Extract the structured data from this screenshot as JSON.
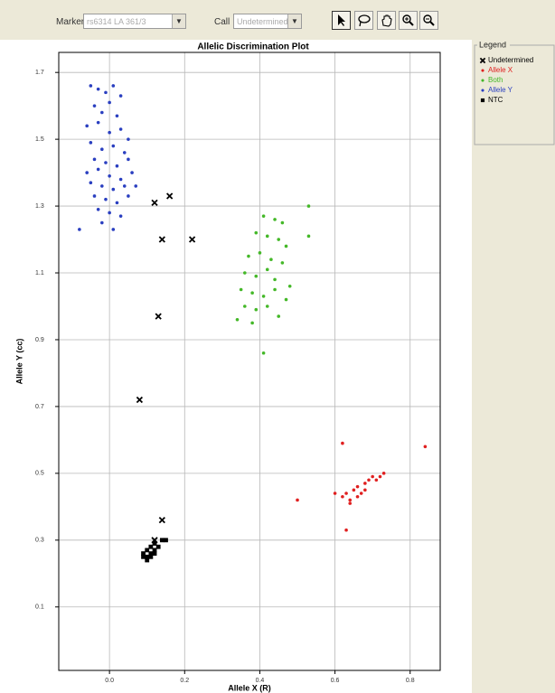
{
  "toolbar": {
    "marker_label": "Marker",
    "marker_value": "rs6314 LA 361/3",
    "call_label": "Call",
    "call_value": "Undetermined"
  },
  "legend_title": "Legend",
  "chart_data": {
    "type": "scatter",
    "title": "Allelic Discrimination Plot",
    "x_label": "Allele X (R)",
    "y_label": "Allele Y (cc)",
    "xlim": [
      -0.135,
      0.88
    ],
    "ylim": [
      -0.09,
      1.76
    ],
    "xticks": [
      {
        "value": 0,
        "label": "0.0"
      },
      0.2,
      0.4,
      0.6,
      0.8
    ],
    "yticks": [
      0.1,
      0.3,
      0.5,
      0.7,
      0.9,
      1.1,
      1.3,
      1.5,
      1.7
    ],
    "grid": true,
    "series": [
      {
        "name": "Undetermined",
        "color": "#000000",
        "marker": "x",
        "x": [
          0.12,
          0.16,
          0.14,
          0.22,
          0.13,
          0.08,
          0.14,
          0.12
        ],
        "values": [
          1.31,
          1.33,
          1.2,
          1.2,
          0.97,
          0.72,
          0.36,
          0.3
        ]
      },
      {
        "name": "Allele X",
        "color": "#e02020",
        "marker": "dot",
        "x": [
          0.62,
          0.63,
          0.64,
          0.65,
          0.66,
          0.67,
          0.68,
          0.69,
          0.7,
          0.71,
          0.72,
          0.73,
          0.64,
          0.66,
          0.68,
          0.62,
          0.84,
          0.5,
          0.63,
          0.6
        ],
        "values": [
          0.43,
          0.44,
          0.42,
          0.45,
          0.46,
          0.44,
          0.47,
          0.48,
          0.49,
          0.48,
          0.49,
          0.5,
          0.41,
          0.43,
          0.45,
          0.59,
          0.58,
          0.42,
          0.33,
          0.44
        ]
      },
      {
        "name": "Both",
        "color": "#44b828",
        "marker": "dot",
        "x": [
          0.41,
          0.44,
          0.46,
          0.39,
          0.42,
          0.45,
          0.47,
          0.37,
          0.4,
          0.43,
          0.46,
          0.36,
          0.39,
          0.42,
          0.44,
          0.48,
          0.35,
          0.38,
          0.41,
          0.44,
          0.47,
          0.36,
          0.39,
          0.42,
          0.45,
          0.34,
          0.38,
          0.53,
          0.53,
          0.41
        ],
        "values": [
          1.27,
          1.26,
          1.25,
          1.22,
          1.21,
          1.2,
          1.18,
          1.15,
          1.16,
          1.14,
          1.13,
          1.1,
          1.09,
          1.11,
          1.08,
          1.06,
          1.05,
          1.04,
          1.03,
          1.05,
          1.02,
          1.0,
          0.99,
          1.0,
          0.97,
          0.96,
          0.95,
          1.3,
          1.21,
          0.86
        ]
      },
      {
        "name": "Allele Y",
        "color": "#2a3fc0",
        "marker": "dot",
        "x": [
          -0.05,
          -0.03,
          -0.01,
          0.01,
          0.03,
          -0.04,
          -0.02,
          0.0,
          0.02,
          -0.06,
          -0.03,
          0.0,
          0.03,
          0.05,
          -0.05,
          -0.02,
          0.01,
          0.04,
          -0.04,
          -0.01,
          0.02,
          0.05,
          -0.06,
          -0.03,
          0.0,
          0.03,
          0.06,
          -0.05,
          -0.02,
          0.01,
          0.04,
          -0.04,
          -0.01,
          0.02,
          0.05,
          -0.03,
          0.0,
          0.03,
          -0.02,
          0.01,
          0.07,
          -0.08
        ],
        "values": [
          1.66,
          1.65,
          1.64,
          1.66,
          1.63,
          1.6,
          1.58,
          1.61,
          1.57,
          1.54,
          1.55,
          1.52,
          1.53,
          1.5,
          1.49,
          1.47,
          1.48,
          1.46,
          1.44,
          1.43,
          1.42,
          1.44,
          1.4,
          1.41,
          1.39,
          1.38,
          1.4,
          1.37,
          1.36,
          1.35,
          1.36,
          1.33,
          1.32,
          1.31,
          1.33,
          1.29,
          1.28,
          1.27,
          1.25,
          1.23,
          1.36,
          1.23
        ]
      },
      {
        "name": "NTC",
        "color": "#000000",
        "marker": "square",
        "x": [
          0.09,
          0.1,
          0.1,
          0.11,
          0.11,
          0.12,
          0.12,
          0.13,
          0.1,
          0.11,
          0.14,
          0.15,
          0.09,
          0.12
        ],
        "values": [
          0.26,
          0.25,
          0.27,
          0.26,
          0.28,
          0.27,
          0.29,
          0.28,
          0.24,
          0.25,
          0.3,
          0.3,
          0.25,
          0.26
        ]
      }
    ]
  }
}
